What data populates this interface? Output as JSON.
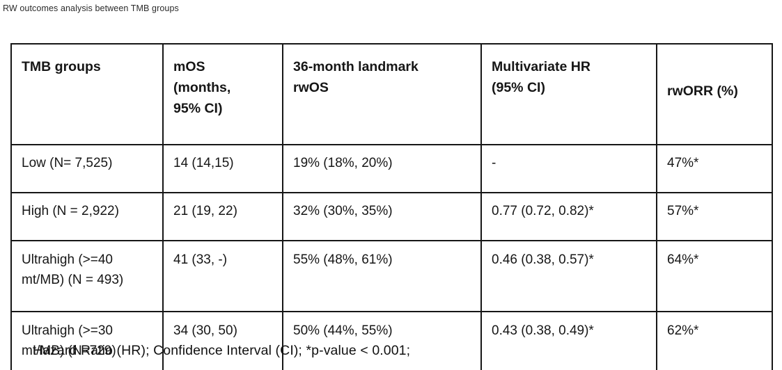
{
  "page": {
    "title": "RW outcomes analysis between TMB groups"
  },
  "table": {
    "headers": [
      "TMB groups",
      "mOS\n(months,\n95% CI)",
      "36-month landmark\nrwOS",
      "Multivariate HR\n(95% CI)",
      "rwORR (%)"
    ],
    "rows": [
      {
        "cells": [
          "Low (N= 7,525)",
          "14 (14,15)",
          "19% (18%, 20%)",
          "-",
          "47%*"
        ]
      },
      {
        "cells": [
          "High (N = 2,922)",
          "21 (19, 22)",
          "32% (30%, 35%)",
          "0.77 (0.72, 0.82)*",
          "57%*"
        ]
      },
      {
        "cells": [
          "Ultrahigh (>=40 mt/MB) (N = 493)",
          "41 (33, -)",
          "55% (48%, 61%)",
          "0.46 (0.38, 0.57)*",
          "64%*"
        ]
      },
      {
        "cells": [
          "Ultrahigh (>=30 mt/MB) (N=729)",
          "34 (30, 50)",
          "50% (44%, 55%)",
          "0.43 (0.38, 0.49)*",
          "62%*"
        ]
      }
    ]
  },
  "footnote": "Hazard Ratio (HR); Confidence Interval (CI); *p-value < 0.001;"
}
